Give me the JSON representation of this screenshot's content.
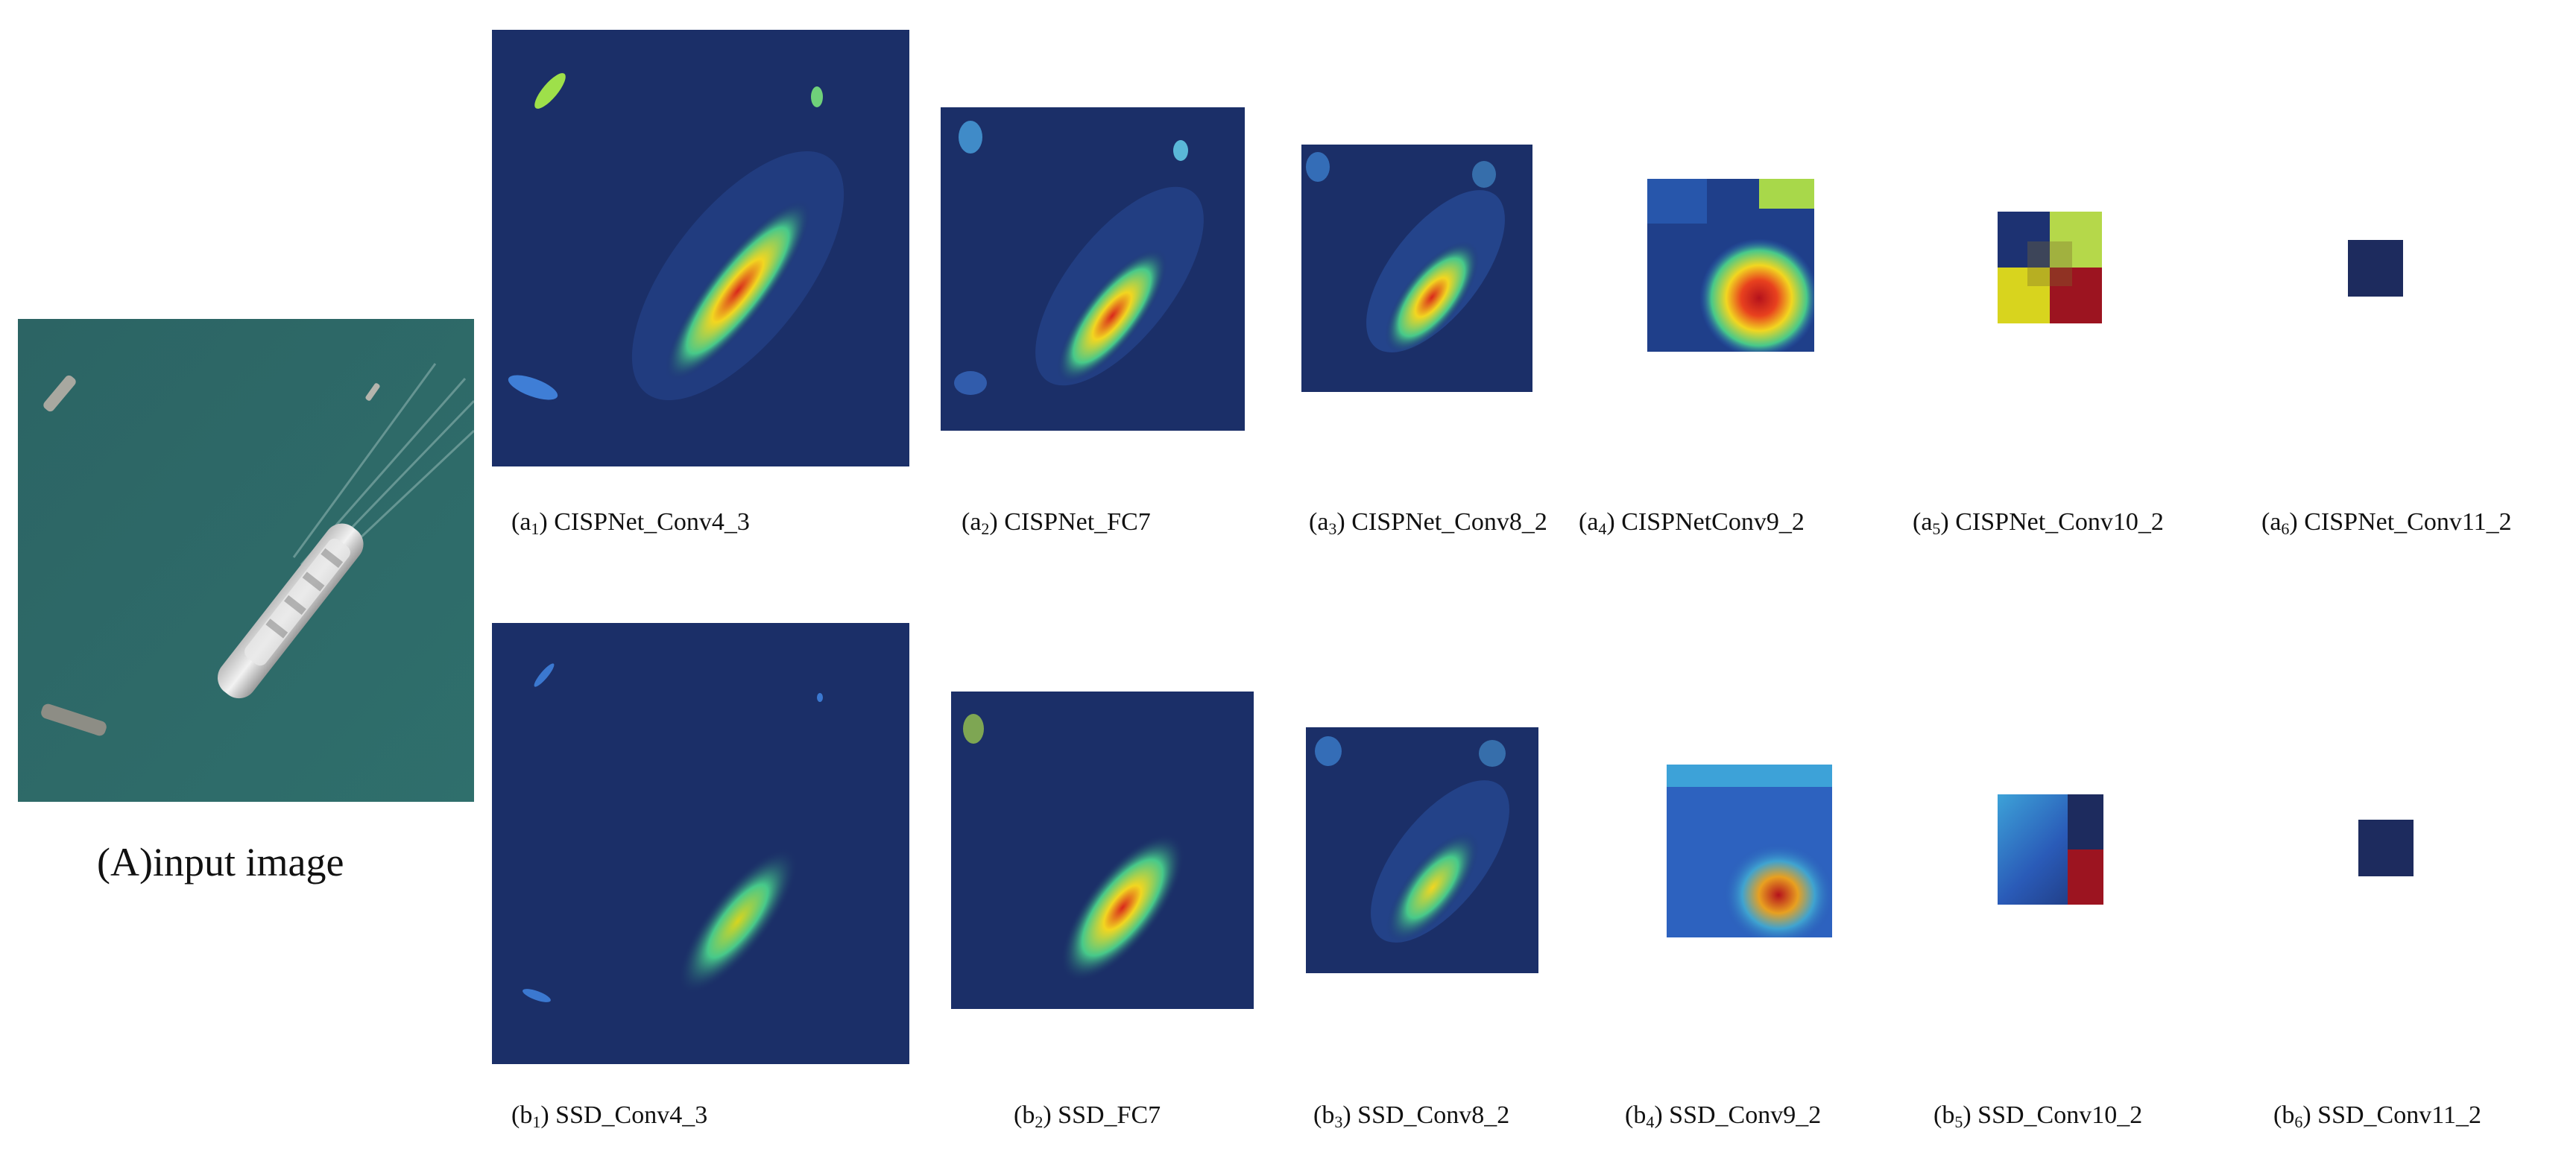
{
  "figure": {
    "input_caption": "(A)input  image",
    "row_a": [
      {
        "prefix": "(a",
        "index": "1",
        "suffix": ") ",
        "name": "CISPNet_Conv4_3"
      },
      {
        "prefix": "(a",
        "index": "2",
        "suffix": ") ",
        "name": "CISPNet_FC7"
      },
      {
        "prefix": "(a",
        "index": "3",
        "suffix": ") ",
        "name": "CISPNet_Conv8_2"
      },
      {
        "prefix": "(a",
        "index": "4",
        "suffix": ") ",
        "name": "CISPNetConv9_2"
      },
      {
        "prefix": "(a",
        "index": "5",
        "suffix": ") ",
        "name": "CISPNet_Conv10_2"
      },
      {
        "prefix": "(a",
        "index": "6",
        "suffix": ") ",
        "name": "CISPNet_Conv11_2"
      }
    ],
    "row_b": [
      {
        "prefix": "(b",
        "index": "1",
        "suffix": ") ",
        "name": "SSD_Conv4_3"
      },
      {
        "prefix": "(b",
        "index": "2",
        "suffix": ") ",
        "name": "SSD_FC7"
      },
      {
        "prefix": "(b",
        "index": "3",
        "suffix": ") ",
        "name": "SSD_Conv8_2"
      },
      {
        "prefix": "(b",
        "index": "4",
        "suffix": ") ",
        "name": "SSD_Conv9_2"
      },
      {
        "prefix": "(b",
        "index": "5",
        "suffix": ") ",
        "name": "SSD_Conv10_2"
      },
      {
        "prefix": "(b",
        "index": "6",
        "suffix": ") ",
        "name": "SSD_Conv11_2"
      }
    ]
  },
  "colors": {
    "heatmap_background": "#1b2f68",
    "sea": "#2f6a6a"
  }
}
